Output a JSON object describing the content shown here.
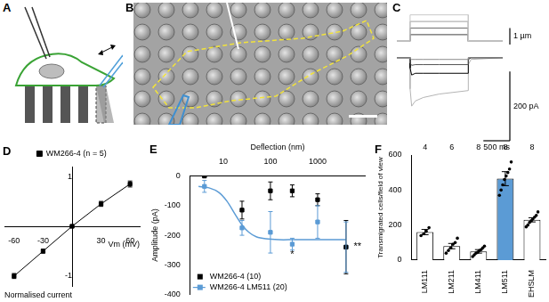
{
  "panel_labels": [
    "A",
    "B",
    "C",
    "D",
    "E",
    "F"
  ],
  "chart_data": [
    {
      "type": "line",
      "tick_labels": false,
      "grid": false,
      "x": [
        0,
        249,
        250,
        1349,
        1350,
        2000
      ],
      "xlim": [
        0,
        2000
      ],
      "ylim": [
        -0.2,
        1.8
      ],
      "series": [
        {
          "color": "#c8c8c8",
          "values": [
            0,
            0,
            1.6,
            1.6,
            0,
            0
          ]
        },
        {
          "color": "#a0a0a0",
          "values": [
            0,
            0,
            1.2,
            1.2,
            0,
            0
          ]
        },
        {
          "color": "#707070",
          "values": [
            0,
            0,
            0.8,
            0.8,
            0,
            0
          ]
        },
        {
          "color": "#404040",
          "values": [
            0,
            0,
            0.4,
            0.4,
            0,
            0
          ]
        }
      ],
      "scale_bars": [
        {
          "axis": "y",
          "value": 1,
          "label": "1 µm"
        }
      ]
    },
    {
      "type": "line",
      "tick_labels": false,
      "grid": false,
      "x": [
        0,
        249,
        250,
        280,
        350,
        500,
        800,
        1349,
        1350,
        1400,
        2000
      ],
      "xlim": [
        0,
        2000
      ],
      "ylim": [
        -240,
        20
      ],
      "series": [
        {
          "color": "#8c8c8c",
          "values": [
            0,
            0,
            -3,
            -5,
            -5,
            -5,
            -5,
            -5,
            0,
            0,
            0
          ]
        },
        {
          "color": "#555555",
          "values": [
            0,
            0,
            -15,
            -22,
            -20,
            -20,
            -20,
            -20,
            0,
            0,
            0
          ]
        },
        {
          "color": "#000000",
          "values": [
            0,
            0,
            -30,
            -50,
            -45,
            -45,
            -45,
            -45,
            -5,
            0,
            0
          ]
        },
        {
          "color": "#b4b4b4",
          "values": [
            0,
            0,
            -90,
            -140,
            -125,
            -115,
            -105,
            -95,
            -20,
            -5,
            0
          ]
        }
      ],
      "scale_bars": [
        {
          "axis": "y",
          "value": 200,
          "label": "200 pA"
        },
        {
          "axis": "x",
          "value": 500,
          "label": "500 ms"
        }
      ]
    },
    {
      "type": "line",
      "grid": false,
      "legend": "top",
      "x_label": "Vm (mV)",
      "y_label": "Normalised current",
      "x": [
        -60,
        -30,
        0,
        30,
        60
      ],
      "xlim": [
        -70,
        70
      ],
      "xticks": [
        -60,
        -30,
        30,
        60
      ],
      "ylim": [
        -1.2,
        1.2
      ],
      "yticks": [
        -1,
        1
      ],
      "series": [
        {
          "name": "WM266-4 (n = 5)",
          "color": "#000000",
          "marker": "square",
          "line_style": "solid",
          "values": [
            -1,
            -0.5,
            0,
            0.45,
            0.85
          ],
          "errors": [
            0.05,
            0.04,
            0.02,
            0.05,
            0.06
          ]
        }
      ]
    },
    {
      "type": "line",
      "grid": false,
      "log": "x",
      "legend": "lower left",
      "x_label": "Deflection (nm)",
      "y_label": "Amplitude (pA)",
      "x": [
        4,
        25,
        100,
        290,
        1000,
        4000
      ],
      "xlim": [
        2,
        10000
      ],
      "xticks": [
        10,
        100,
        1000
      ],
      "ylim": [
        -400,
        0
      ],
      "yticks": [
        -400,
        -300,
        -200,
        -100,
        0
      ],
      "series": [
        {
          "name": "WM266-4 (10)",
          "color": "#000000",
          "marker": "square",
          "line_style": "none",
          "values": [
            0,
            -115,
            -50,
            -50,
            -80,
            -240
          ],
          "errors": [
            3,
            30,
            30,
            20,
            20,
            90
          ]
        },
        {
          "name": "WM266-4 LM511 (20)",
          "color": "#5b9bd5",
          "marker": "square",
          "line_style": "none",
          "values": [
            -35,
            -175,
            -190,
            -230,
            -155,
            -240
          ],
          "errors": [
            20,
            25,
            70,
            20,
            55,
            85
          ],
          "fit": {
            "x": [
              3,
              5,
              8,
              12,
              18,
              25,
              35,
              50,
              80,
              150,
              300,
              1000,
              4000
            ],
            "values": [
              -35,
              -40,
              -55,
              -85,
              -130,
              -165,
              -190,
              -205,
              -212,
              -215,
              -215,
              -215,
              -215
            ]
          }
        }
      ],
      "annotations": [
        {
          "text": "*",
          "x": 290,
          "y": -265
        },
        {
          "text": "**",
          "x": 7000,
          "y": -240
        }
      ]
    },
    {
      "type": "bar",
      "grid": false,
      "y_label": "Transmigrated cells/field of view",
      "categories": [
        "LM111",
        "LM211",
        "LM411",
        "LM511",
        "EHSLM"
      ],
      "values": [
        160,
        80,
        50,
        465,
        230
      ],
      "errors": [
        15,
        15,
        10,
        40,
        12
      ],
      "colors": [
        "#ffffff",
        "#ffffff",
        "#ffffff",
        "#5b9bd5",
        "#ffffff"
      ],
      "n": [
        4,
        6,
        8,
        8,
        8
      ],
      "marker": "circle",
      "points": [
        [
          140,
          150,
          165,
          185
        ],
        [
          40,
          55,
          70,
          90,
          100,
          125
        ],
        [
          20,
          30,
          40,
          45,
          55,
          60,
          70,
          80
        ],
        [
          370,
          400,
          430,
          460,
          480,
          500,
          520,
          560
        ],
        [
          190,
          200,
          215,
          225,
          235,
          245,
          255,
          275
        ]
      ],
      "ylim": [
        0,
        600
      ],
      "yticks": [
        0,
        200,
        400,
        600
      ]
    }
  ]
}
